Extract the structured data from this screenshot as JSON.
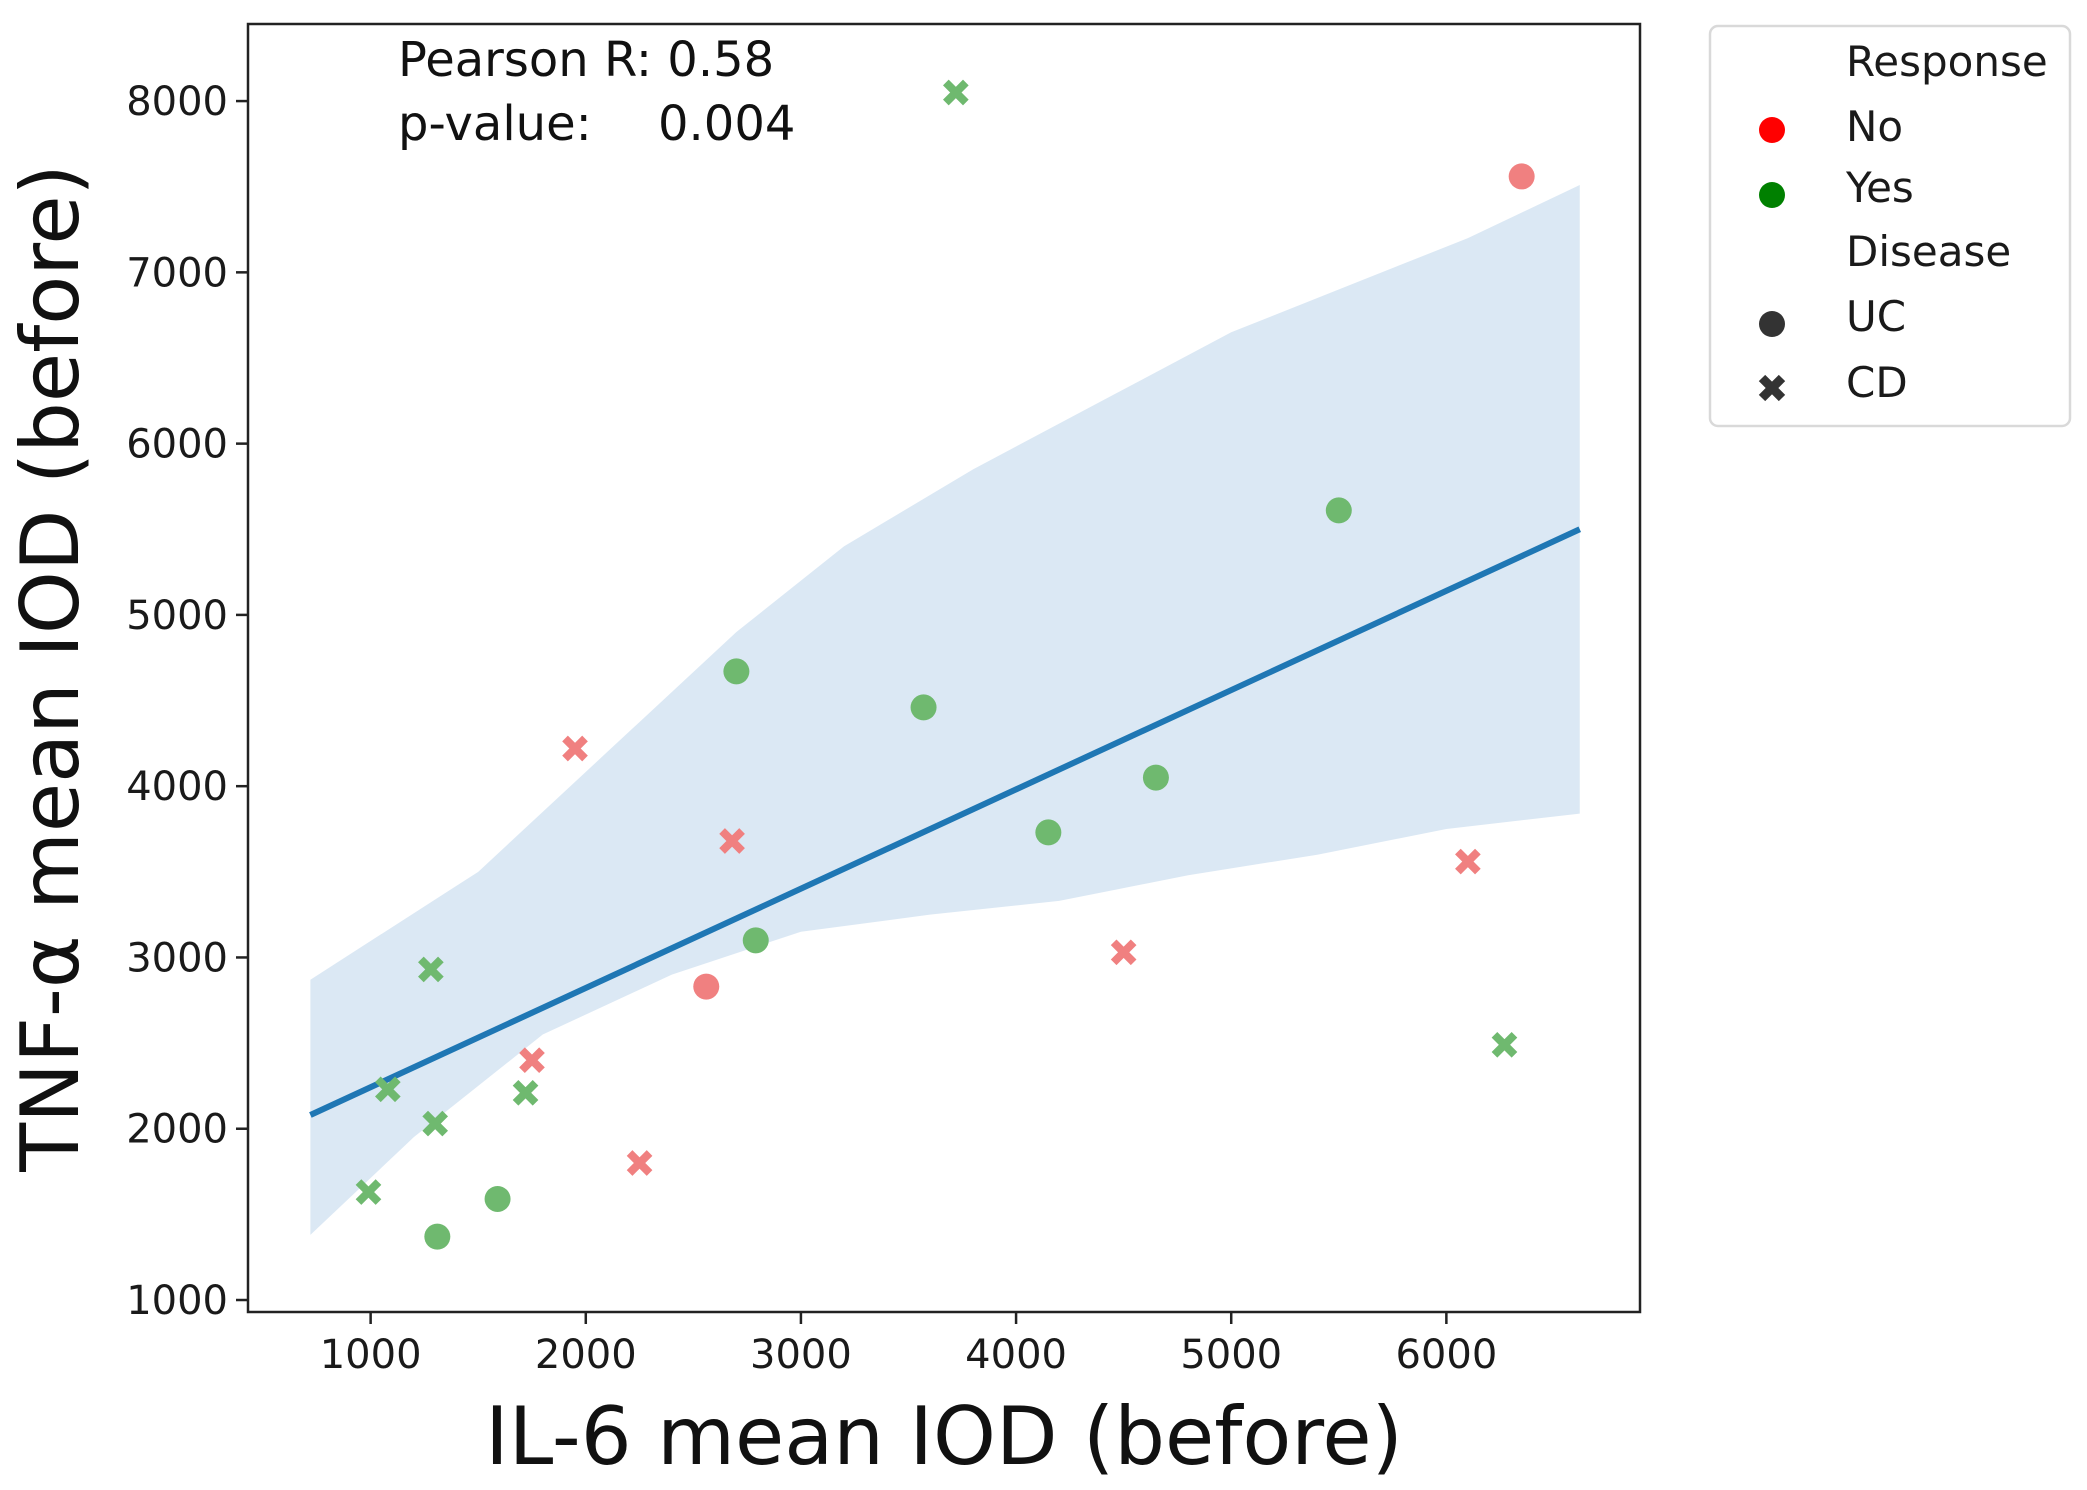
{
  "chart_data": {
    "type": "scatter",
    "title": "",
    "xlabel": "IL-6 mean IOD (before)",
    "ylabel": "TNF-α mean IOD (before)",
    "xlim": [
      430,
      6900
    ],
    "ylim": [
      930,
      8450
    ],
    "xticks": [
      1000,
      2000,
      3000,
      4000,
      5000,
      6000
    ],
    "yticks": [
      1000,
      2000,
      3000,
      4000,
      5000,
      6000,
      7000,
      8000
    ],
    "stats": {
      "pearson": "Pearson R: 0.58",
      "pvalue_label": "p-value:",
      "pvalue": "0.004"
    },
    "colors": {
      "No": "#ff0000",
      "Yes": "#008000",
      "No_point": "#f08080",
      "Yes_point": "#6fb96f",
      "regression": "#1f77b4",
      "ci_band": "#cfe0f0",
      "legend_shape": "#333333"
    },
    "legend": {
      "placement": "outside-upper-right",
      "response_title": "Response",
      "response_entries": [
        "No",
        "Yes"
      ],
      "disease_title": "Disease",
      "disease_entries": [
        "UC",
        "CD"
      ]
    },
    "regression": {
      "x": [
        720,
        6620
      ],
      "y": [
        2080,
        5500
      ],
      "ci_upper": [
        [
          720,
          2870
        ],
        [
          1500,
          3500
        ],
        [
          2100,
          4200
        ],
        [
          2700,
          4900
        ],
        [
          3200,
          5400
        ],
        [
          3800,
          5850
        ],
        [
          4400,
          6250
        ],
        [
          5000,
          6650
        ],
        [
          5600,
          6950
        ],
        [
          6100,
          7200
        ],
        [
          6620,
          7510
        ]
      ],
      "ci_lower": [
        [
          720,
          1380
        ],
        [
          1200,
          1950
        ],
        [
          1800,
          2550
        ],
        [
          2400,
          2900
        ],
        [
          3000,
          3150
        ],
        [
          3600,
          3250
        ],
        [
          4200,
          3330
        ],
        [
          4800,
          3480
        ],
        [
          5400,
          3600
        ],
        [
          6000,
          3750
        ],
        [
          6620,
          3840
        ]
      ]
    },
    "series": [
      {
        "name": "No-UC",
        "response": "No",
        "disease": "UC",
        "marker": "circle",
        "points": [
          [
            6350,
            7560
          ],
          [
            2560,
            2830
          ]
        ]
      },
      {
        "name": "No-CD",
        "response": "No",
        "disease": "CD",
        "marker": "x",
        "points": [
          [
            1950,
            4220
          ],
          [
            2680,
            3680
          ],
          [
            1750,
            2400
          ],
          [
            2250,
            1800
          ],
          [
            4500,
            3030
          ],
          [
            6100,
            3560
          ]
        ]
      },
      {
        "name": "Yes-UC",
        "response": "Yes",
        "disease": "UC",
        "marker": "circle",
        "points": [
          [
            5500,
            5610
          ],
          [
            2700,
            4670
          ],
          [
            3570,
            4460
          ],
          [
            4650,
            4050
          ],
          [
            4150,
            3730
          ],
          [
            2790,
            3100
          ],
          [
            1590,
            1590
          ],
          [
            1310,
            1370
          ]
        ]
      },
      {
        "name": "Yes-CD",
        "response": "Yes",
        "disease": "CD",
        "marker": "x",
        "points": [
          [
            3720,
            8050
          ],
          [
            1280,
            2930
          ],
          [
            1080,
            2230
          ],
          [
            1300,
            2030
          ],
          [
            1720,
            2210
          ],
          [
            990,
            1630
          ],
          [
            6270,
            2490
          ]
        ]
      }
    ]
  }
}
